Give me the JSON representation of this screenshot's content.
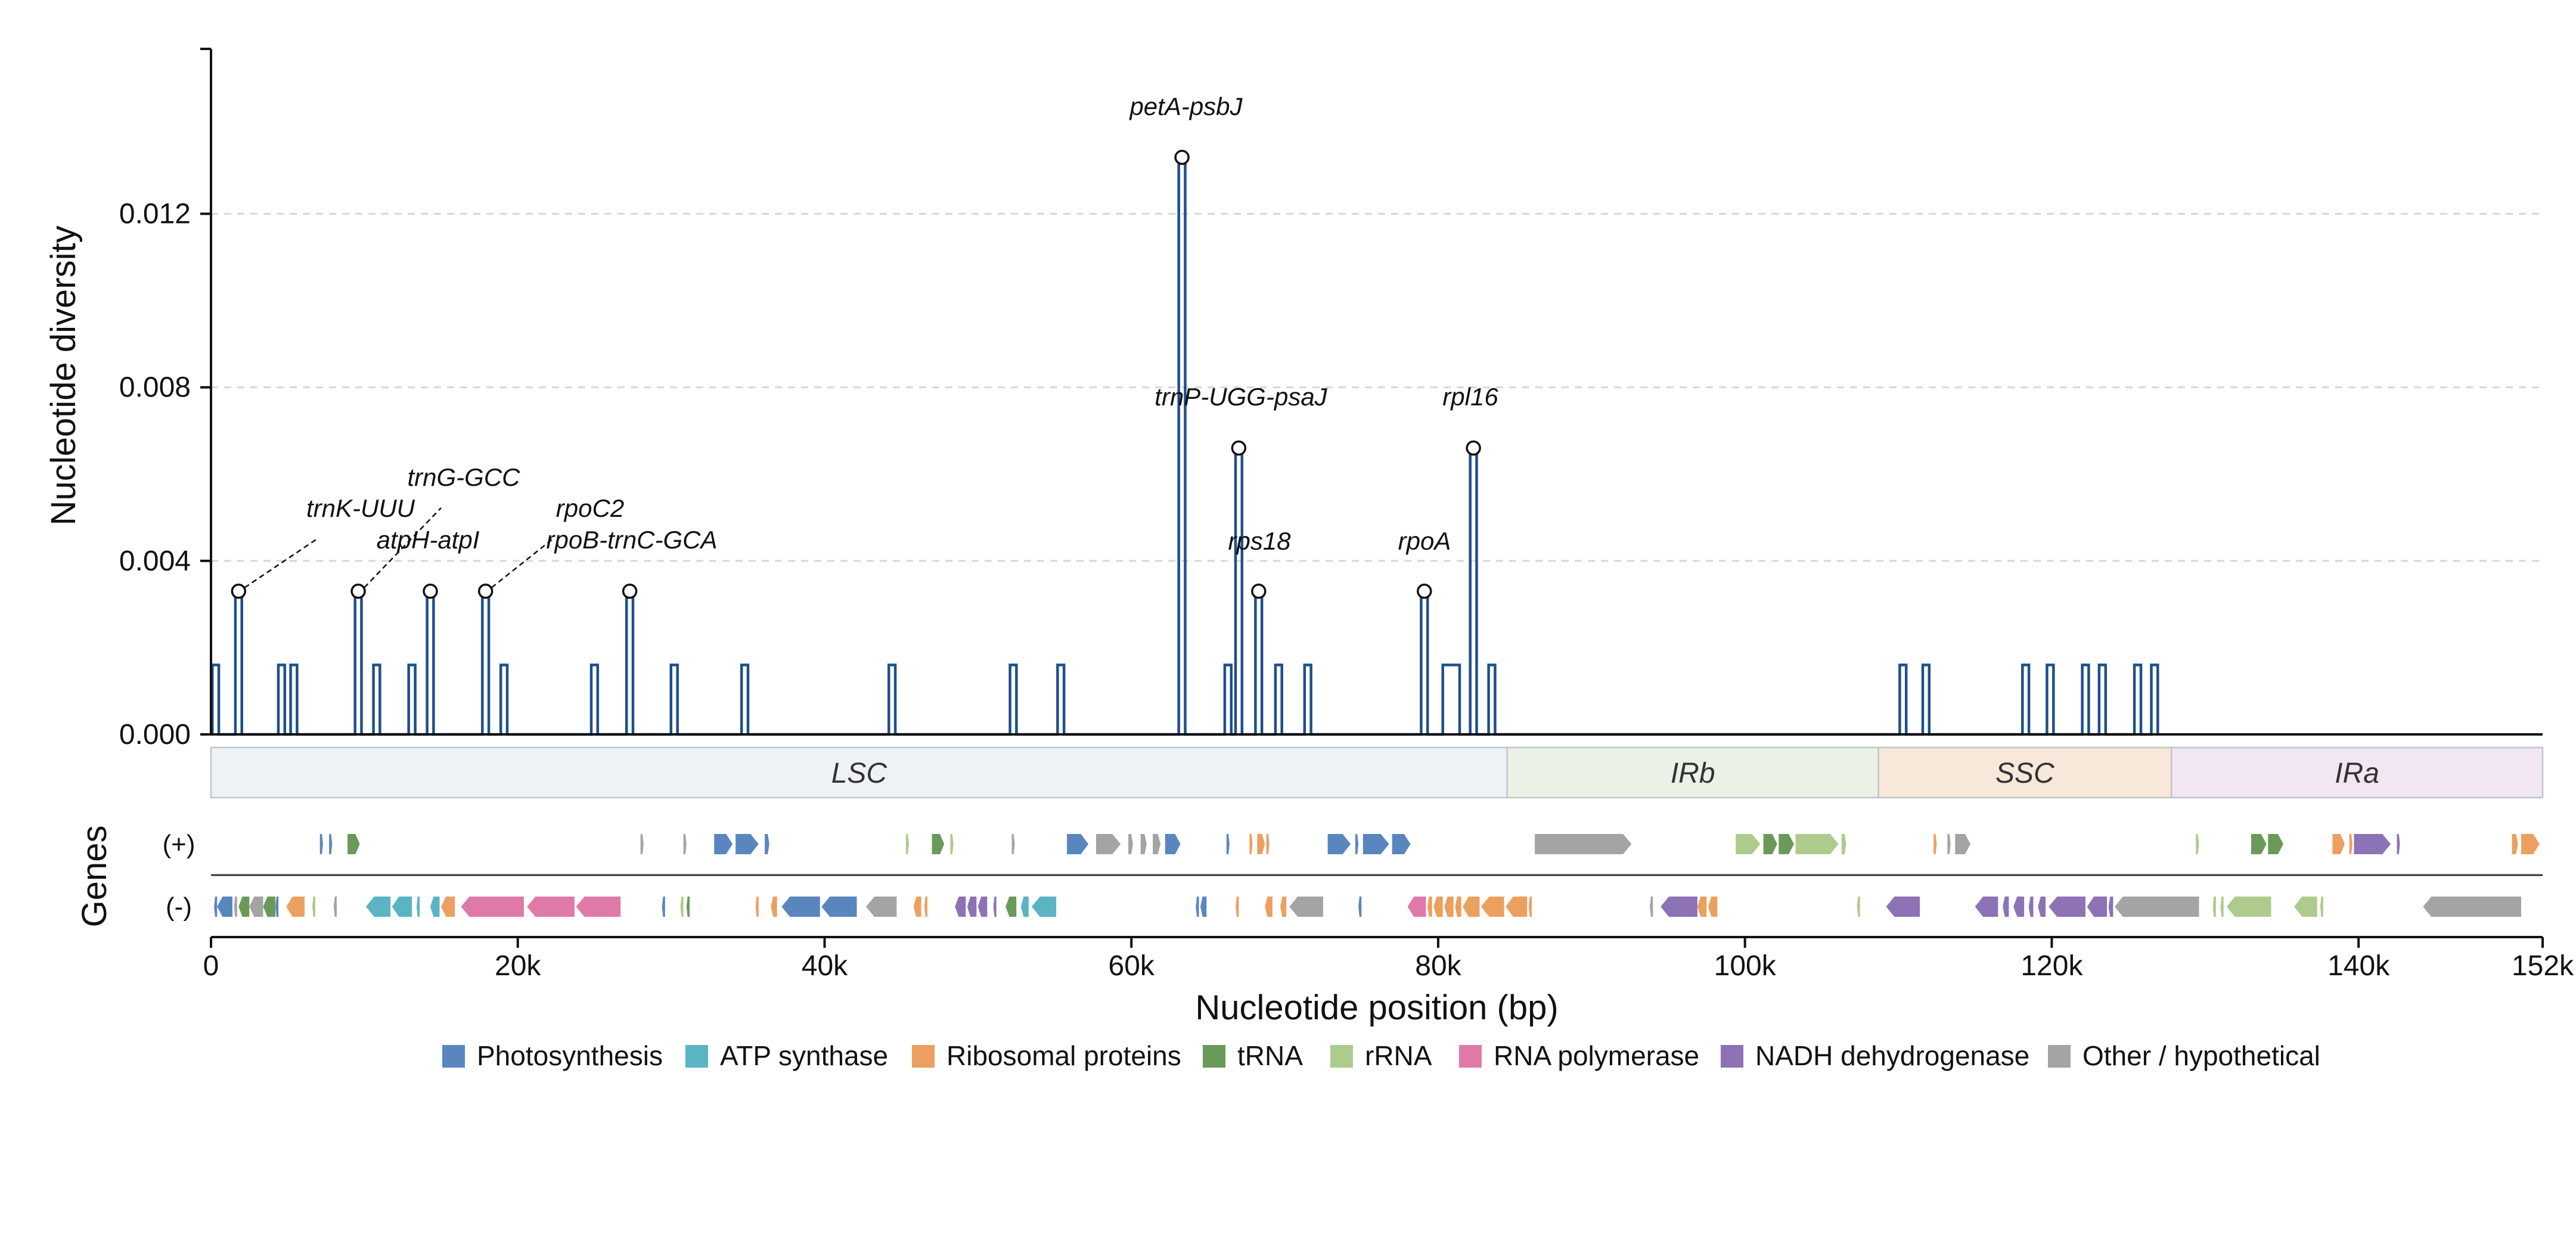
{
  "chart_data": {
    "type": "line",
    "title": "",
    "xlabel": "Nucleotide position (bp)",
    "ylabel": "Nucleotide diversity",
    "genes_label": "Genes",
    "strand_labels": [
      "(+)",
      "(-)"
    ],
    "xlim": [
      0,
      152000
    ],
    "ylim": [
      0,
      0.0158
    ],
    "yticks": [
      0.0,
      0.004,
      0.008,
      0.012
    ],
    "ytick_labels": [
      "0.000",
      "0.004",
      "0.008",
      "0.012"
    ],
    "xticks": [
      0,
      20000,
      40000,
      60000,
      80000,
      100000,
      120000,
      140000,
      152000
    ],
    "xtick_labels": [
      "0",
      "20k",
      "40k",
      "60k",
      "80k",
      "100k",
      "120k",
      "140k",
      "152k"
    ],
    "grid": "horizontal dashed",
    "line_color": "#1f4e8c",
    "peaks": [
      {
        "center": 300,
        "value": 0.0016
      },
      {
        "center": 1800,
        "value": 0.0033,
        "label": "trnK-UUU"
      },
      {
        "center": 4600,
        "value": 0.0016
      },
      {
        "center": 5400,
        "value": 0.0016
      },
      {
        "center": 9600,
        "value": 0.0033,
        "label": "trnG-GCC"
      },
      {
        "center": 10800,
        "value": 0.0016
      },
      {
        "center": 13100,
        "value": 0.0016
      },
      {
        "center": 14300,
        "value": 0.0033,
        "label": "atpH-atpI"
      },
      {
        "center": 17900,
        "value": 0.0033,
        "label": "rpoC2"
      },
      {
        "center": 19100,
        "value": 0.0016
      },
      {
        "center": 25000,
        "value": 0.0016
      },
      {
        "center": 27300,
        "value": 0.0033,
        "label": "rpoB-trnC-GCA"
      },
      {
        "center": 30200,
        "value": 0.0016
      },
      {
        "center": 34800,
        "value": 0.0016
      },
      {
        "center": 44400,
        "value": 0.0016
      },
      {
        "center": 52300,
        "value": 0.0016
      },
      {
        "center": 55400,
        "value": 0.0016
      },
      {
        "center": 63300,
        "value": 0.0133,
        "label": "petA-psbJ"
      },
      {
        "center": 66300,
        "value": 0.0016
      },
      {
        "center": 67000,
        "value": 0.0066,
        "label": "trnP-UGG-psaJ"
      },
      {
        "center": 68300,
        "value": 0.0033,
        "label": "rps18"
      },
      {
        "center": 69600,
        "value": 0.0016
      },
      {
        "center": 71500,
        "value": 0.0016
      },
      {
        "center": 79100,
        "value": 0.0033,
        "label": "rpoA"
      },
      {
        "center": 82300,
        "value": 0.0066,
        "label": "rpl16"
      },
      {
        "center": 83500,
        "value": 0.0016
      },
      {
        "center": 110300,
        "value": 0.0016
      },
      {
        "center": 111800,
        "value": 0.0016
      },
      {
        "center": 118300,
        "value": 0.0016
      },
      {
        "center": 119900,
        "value": 0.0016
      },
      {
        "center": 122200,
        "value": 0.0016
      },
      {
        "center": 123300,
        "value": 0.0016
      },
      {
        "center": 125600,
        "value": 0.0016
      },
      {
        "center": 126700,
        "value": 0.0016
      }
    ],
    "plateaus": [
      {
        "start": 80300,
        "end": 81400,
        "value": 0.0016
      }
    ],
    "regions": [
      {
        "name": "LSC",
        "start": 0,
        "end": 84500,
        "color": "#eef2f6"
      },
      {
        "name": "IRb",
        "start": 84500,
        "end": 108700,
        "color": "#eaf1e6"
      },
      {
        "name": "SSC",
        "start": 108700,
        "end": 127800,
        "color": "#f8e8d9"
      },
      {
        "name": "IRa",
        "start": 127800,
        "end": 152000,
        "color": "#f1e6f1"
      }
    ],
    "legend_placement": "bottom-center",
    "categories": [
      {
        "name": "Photosynthesis",
        "color": "#5a86c0"
      },
      {
        "name": "ATP synthase",
        "color": "#5ab4c4"
      },
      {
        "name": "Ribosomal proteins",
        "color": "#eca060"
      },
      {
        "name": "tRNA",
        "color": "#6a9a5a"
      },
      {
        "name": "rRNA",
        "color": "#aecb8e"
      },
      {
        "name": "RNA polymerase",
        "color": "#df7aa8"
      },
      {
        "name": "NADH dehydrogenase",
        "color": "#8e72b6"
      },
      {
        "name": "Other / hypothetical",
        "color": "#a4a4a4"
      }
    ],
    "genes_plus": [
      {
        "start": 7100,
        "end": 7300,
        "cat": "Photosynthesis"
      },
      {
        "start": 7700,
        "end": 7900,
        "cat": "Photosynthesis"
      },
      {
        "start": 8900,
        "end": 9700,
        "cat": "tRNA"
      },
      {
        "start": 28000,
        "end": 28200,
        "cat": "Other / hypothetical"
      },
      {
        "start": 30800,
        "end": 31000,
        "cat": "Other / hypothetical"
      },
      {
        "start": 32800,
        "end": 34000,
        "cat": "Photosynthesis"
      },
      {
        "start": 34200,
        "end": 35700,
        "cat": "Photosynthesis"
      },
      {
        "start": 36100,
        "end": 36400,
        "cat": "Photosynthesis"
      },
      {
        "start": 45300,
        "end": 45500,
        "cat": "rRNA"
      },
      {
        "start": 47000,
        "end": 47800,
        "cat": "tRNA"
      },
      {
        "start": 48200,
        "end": 48400,
        "cat": "rRNA"
      },
      {
        "start": 52200,
        "end": 52400,
        "cat": "Other / hypothetical"
      },
      {
        "start": 55800,
        "end": 57200,
        "cat": "Photosynthesis"
      },
      {
        "start": 57700,
        "end": 59300,
        "cat": "Other / hypothetical"
      },
      {
        "start": 59800,
        "end": 60100,
        "cat": "Other / hypothetical"
      },
      {
        "start": 60600,
        "end": 61000,
        "cat": "Other / hypothetical"
      },
      {
        "start": 61400,
        "end": 61900,
        "cat": "Other / hypothetical"
      },
      {
        "start": 62200,
        "end": 63200,
        "cat": "Photosynthesis"
      },
      {
        "start": 66200,
        "end": 66400,
        "cat": "Photosynthesis"
      },
      {
        "start": 67700,
        "end": 67900,
        "cat": "Ribosomal proteins"
      },
      {
        "start": 68200,
        "end": 68700,
        "cat": "Ribosomal proteins"
      },
      {
        "start": 68800,
        "end": 69000,
        "cat": "Ribosomal proteins"
      },
      {
        "start": 72800,
        "end": 74300,
        "cat": "Photosynthesis"
      },
      {
        "start": 74600,
        "end": 74800,
        "cat": "Photosynthesis"
      },
      {
        "start": 75100,
        "end": 76800,
        "cat": "Photosynthesis"
      },
      {
        "start": 77000,
        "end": 78200,
        "cat": "Photosynthesis"
      },
      {
        "start": 86300,
        "end": 92600,
        "cat": "Other / hypothetical"
      },
      {
        "start": 99400,
        "end": 101000,
        "cat": "rRNA"
      },
      {
        "start": 101200,
        "end": 102100,
        "cat": "tRNA"
      },
      {
        "start": 102200,
        "end": 103200,
        "cat": "tRNA"
      },
      {
        "start": 103300,
        "end": 106100,
        "cat": "rRNA"
      },
      {
        "start": 106300,
        "end": 106600,
        "cat": "rRNA"
      },
      {
        "start": 112300,
        "end": 112500,
        "cat": "Ribosomal proteins"
      },
      {
        "start": 113200,
        "end": 113400,
        "cat": "Other / hypothetical"
      },
      {
        "start": 113700,
        "end": 114700,
        "cat": "Other / hypothetical"
      },
      {
        "start": 129400,
        "end": 129600,
        "cat": "rRNA"
      },
      {
        "start": 133000,
        "end": 134000,
        "cat": "tRNA"
      },
      {
        "start": 134100,
        "end": 135100,
        "cat": "tRNA"
      },
      {
        "start": 138300,
        "end": 139100,
        "cat": "Ribosomal proteins"
      },
      {
        "start": 139400,
        "end": 139600,
        "cat": "Ribosomal proteins"
      },
      {
        "start": 139700,
        "end": 142100,
        "cat": "NADH dehydrogenase"
      },
      {
        "start": 142500,
        "end": 142700,
        "cat": "NADH dehydrogenase"
      },
      {
        "start": 150000,
        "end": 150400,
        "cat": "Ribosomal proteins"
      },
      {
        "start": 150600,
        "end": 151800,
        "cat": "Ribosomal proteins"
      }
    ],
    "genes_minus": [
      {
        "start": 200,
        "end": 400,
        "cat": "Photosynthesis"
      },
      {
        "start": 400,
        "end": 1400,
        "cat": "Photosynthesis"
      },
      {
        "start": 1500,
        "end": 1700,
        "cat": "Other / hypothetical"
      },
      {
        "start": 1800,
        "end": 2500,
        "cat": "tRNA"
      },
      {
        "start": 2500,
        "end": 3400,
        "cat": "Other / hypothetical"
      },
      {
        "start": 3400,
        "end": 4200,
        "cat": "tRNA"
      },
      {
        "start": 4200,
        "end": 4400,
        "cat": "Photosynthesis"
      },
      {
        "start": 4900,
        "end": 6100,
        "cat": "Ribosomal proteins"
      },
      {
        "start": 6600,
        "end": 6800,
        "cat": "rRNA"
      },
      {
        "start": 8000,
        "end": 8200,
        "cat": "Other / hypothetical"
      },
      {
        "start": 10100,
        "end": 11700,
        "cat": "ATP synthase"
      },
      {
        "start": 11800,
        "end": 13100,
        "cat": "ATP synthase"
      },
      {
        "start": 13400,
        "end": 13600,
        "cat": "ATP synthase"
      },
      {
        "start": 14300,
        "end": 14900,
        "cat": "ATP synthase"
      },
      {
        "start": 15000,
        "end": 15900,
        "cat": "Ribosomal proteins"
      },
      {
        "start": 16300,
        "end": 20400,
        "cat": "RNA polymerase"
      },
      {
        "start": 20600,
        "end": 23700,
        "cat": "RNA polymerase"
      },
      {
        "start": 23800,
        "end": 26700,
        "cat": "RNA polymerase"
      },
      {
        "start": 29400,
        "end": 29600,
        "cat": "Photosynthesis"
      },
      {
        "start": 30600,
        "end": 30800,
        "cat": "rRNA"
      },
      {
        "start": 31000,
        "end": 31200,
        "cat": "tRNA"
      },
      {
        "start": 35500,
        "end": 35700,
        "cat": "Ribosomal proteins"
      },
      {
        "start": 36500,
        "end": 36900,
        "cat": "Ribosomal proteins"
      },
      {
        "start": 37200,
        "end": 39700,
        "cat": "Photosynthesis"
      },
      {
        "start": 39800,
        "end": 42100,
        "cat": "Photosynthesis"
      },
      {
        "start": 42700,
        "end": 44700,
        "cat": "Other / hypothetical"
      },
      {
        "start": 45800,
        "end": 46300,
        "cat": "Ribosomal proteins"
      },
      {
        "start": 46500,
        "end": 46700,
        "cat": "Ribosomal proteins"
      },
      {
        "start": 48500,
        "end": 49200,
        "cat": "NADH dehydrogenase"
      },
      {
        "start": 49300,
        "end": 49900,
        "cat": "NADH dehydrogenase"
      },
      {
        "start": 50000,
        "end": 50600,
        "cat": "NADH dehydrogenase"
      },
      {
        "start": 51000,
        "end": 51200,
        "cat": "NADH dehydrogenase"
      },
      {
        "start": 51800,
        "end": 52500,
        "cat": "tRNA"
      },
      {
        "start": 52800,
        "end": 53300,
        "cat": "ATP synthase"
      },
      {
        "start": 53500,
        "end": 55100,
        "cat": "ATP synthase"
      },
      {
        "start": 64200,
        "end": 64400,
        "cat": "Photosynthesis"
      },
      {
        "start": 64500,
        "end": 64900,
        "cat": "Photosynthesis"
      },
      {
        "start": 66800,
        "end": 67000,
        "cat": "Ribosomal proteins"
      },
      {
        "start": 68700,
        "end": 69200,
        "cat": "Ribosomal proteins"
      },
      {
        "start": 69700,
        "end": 70100,
        "cat": "Ribosomal proteins"
      },
      {
        "start": 70300,
        "end": 72500,
        "cat": "Other / hypothetical"
      },
      {
        "start": 74800,
        "end": 75000,
        "cat": "Photosynthesis"
      },
      {
        "start": 78000,
        "end": 79200,
        "cat": "RNA polymerase"
      },
      {
        "start": 79300,
        "end": 79600,
        "cat": "Ribosomal proteins"
      },
      {
        "start": 79700,
        "end": 80300,
        "cat": "Ribosomal proteins"
      },
      {
        "start": 80400,
        "end": 81000,
        "cat": "Ribosomal proteins"
      },
      {
        "start": 81100,
        "end": 81500,
        "cat": "Ribosomal proteins"
      },
      {
        "start": 81600,
        "end": 82700,
        "cat": "Ribosomal proteins"
      },
      {
        "start": 82800,
        "end": 84300,
        "cat": "Ribosomal proteins"
      },
      {
        "start": 84400,
        "end": 85800,
        "cat": "Ribosomal proteins"
      },
      {
        "start": 85900,
        "end": 86100,
        "cat": "Ribosomal proteins"
      },
      {
        "start": 93800,
        "end": 94000,
        "cat": "Other / hypothetical"
      },
      {
        "start": 94500,
        "end": 96900,
        "cat": "NADH dehydrogenase"
      },
      {
        "start": 96900,
        "end": 97500,
        "cat": "Ribosomal proteins"
      },
      {
        "start": 97600,
        "end": 98200,
        "cat": "Ribosomal proteins"
      },
      {
        "start": 107300,
        "end": 107500,
        "cat": "rRNA"
      },
      {
        "start": 109200,
        "end": 111400,
        "cat": "NADH dehydrogenase"
      },
      {
        "start": 115000,
        "end": 116500,
        "cat": "NADH dehydrogenase"
      },
      {
        "start": 116800,
        "end": 117200,
        "cat": "NADH dehydrogenase"
      },
      {
        "start": 117500,
        "end": 118200,
        "cat": "NADH dehydrogenase"
      },
      {
        "start": 118500,
        "end": 118800,
        "cat": "NADH dehydrogenase"
      },
      {
        "start": 119100,
        "end": 119600,
        "cat": "NADH dehydrogenase"
      },
      {
        "start": 119800,
        "end": 122200,
        "cat": "NADH dehydrogenase"
      },
      {
        "start": 122300,
        "end": 123600,
        "cat": "NADH dehydrogenase"
      },
      {
        "start": 123700,
        "end": 124000,
        "cat": "NADH dehydrogenase"
      },
      {
        "start": 124100,
        "end": 129600,
        "cat": "Other / hypothetical"
      },
      {
        "start": 130500,
        "end": 130700,
        "cat": "rRNA"
      },
      {
        "start": 131000,
        "end": 131200,
        "cat": "rRNA"
      },
      {
        "start": 131400,
        "end": 134300,
        "cat": "rRNA"
      },
      {
        "start": 135800,
        "end": 137300,
        "cat": "rRNA"
      },
      {
        "start": 137500,
        "end": 137700,
        "cat": "rRNA"
      },
      {
        "start": 144200,
        "end": 150600,
        "cat": "Other / hypothetical"
      }
    ]
  }
}
